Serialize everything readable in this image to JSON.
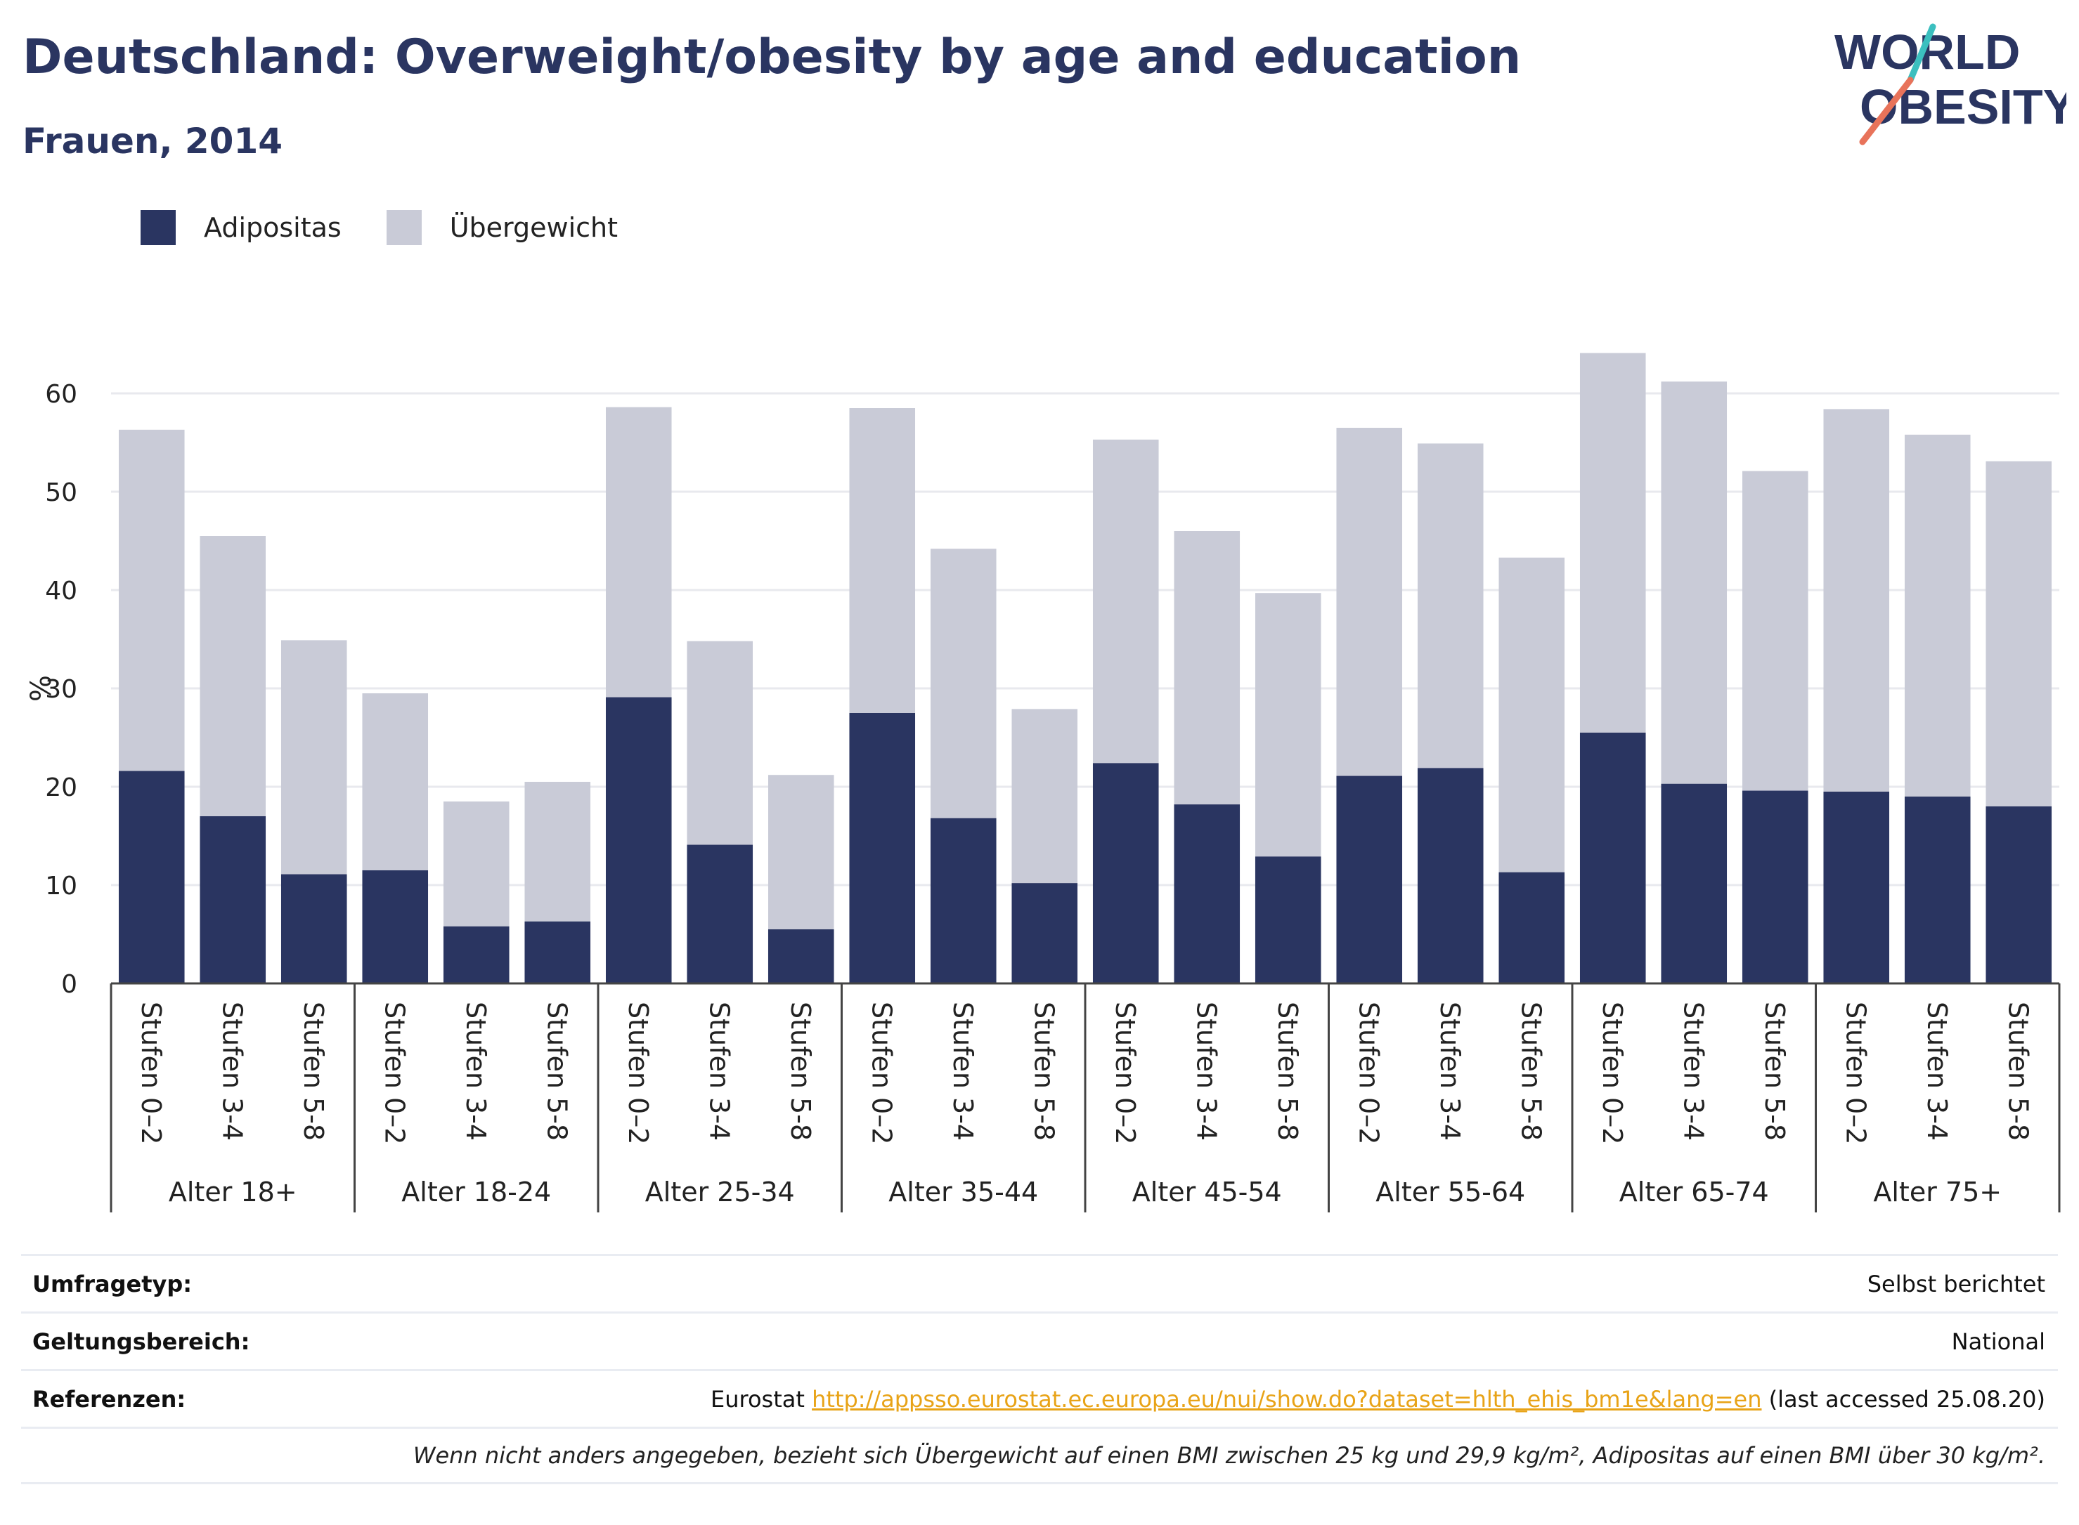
{
  "header": {
    "title": "Deutschland: Overweight/obesity by age and education",
    "subtitle": "Frauen, 2014"
  },
  "logo": {
    "line1": "WORLD",
    "line2": "OBESITY",
    "accent_teal": "#3bbfbf",
    "accent_coral": "#e8735a"
  },
  "legend": [
    {
      "label": "Adipositas",
      "color": "#2a3561"
    },
    {
      "label": "Übergewicht",
      "color": "#c9cbd7"
    }
  ],
  "chart_data": {
    "type": "bar",
    "stacked": "overlay",
    "ylabel": "%",
    "ylim": [
      0,
      65
    ],
    "yticks": [
      0,
      10,
      20,
      30,
      40,
      50,
      60
    ],
    "grid": true,
    "legend_position": "top-left",
    "groups": [
      {
        "label": "Alter 18+",
        "bars": [
          {
            "label": "Stufen 0–2",
            "adipositas": 21.6,
            "uebergewicht": 56.3
          },
          {
            "label": "Stufen 3-4",
            "adipositas": 17.0,
            "uebergewicht": 45.5
          },
          {
            "label": "Stufen 5-8",
            "adipositas": 11.1,
            "uebergewicht": 34.9
          }
        ]
      },
      {
        "label": "Alter 18-24",
        "bars": [
          {
            "label": "Stufen 0–2",
            "adipositas": 11.5,
            "uebergewicht": 29.5
          },
          {
            "label": "Stufen 3-4",
            "adipositas": 5.8,
            "uebergewicht": 18.5
          },
          {
            "label": "Stufen 5-8",
            "adipositas": 6.3,
            "uebergewicht": 20.5
          }
        ]
      },
      {
        "label": "Alter 25-34",
        "bars": [
          {
            "label": "Stufen 0–2",
            "adipositas": 29.1,
            "uebergewicht": 58.6
          },
          {
            "label": "Stufen 3-4",
            "adipositas": 14.1,
            "uebergewicht": 34.8
          },
          {
            "label": "Stufen 5-8",
            "adipositas": 5.5,
            "uebergewicht": 21.2
          }
        ]
      },
      {
        "label": "Alter 35-44",
        "bars": [
          {
            "label": "Stufen 0–2",
            "adipositas": 27.5,
            "uebergewicht": 58.5
          },
          {
            "label": "Stufen 3-4",
            "adipositas": 16.8,
            "uebergewicht": 44.2
          },
          {
            "label": "Stufen 5-8",
            "adipositas": 10.2,
            "uebergewicht": 27.9
          }
        ]
      },
      {
        "label": "Alter 45-54",
        "bars": [
          {
            "label": "Stufen 0–2",
            "adipositas": 22.4,
            "uebergewicht": 55.3
          },
          {
            "label": "Stufen 3-4",
            "adipositas": 18.2,
            "uebergewicht": 46.0
          },
          {
            "label": "Stufen 5-8",
            "adipositas": 12.9,
            "uebergewicht": 39.7
          }
        ]
      },
      {
        "label": "Alter 55-64",
        "bars": [
          {
            "label": "Stufen 0–2",
            "adipositas": 21.1,
            "uebergewicht": 56.5
          },
          {
            "label": "Stufen 3-4",
            "adipositas": 21.9,
            "uebergewicht": 54.9
          },
          {
            "label": "Stufen 5-8",
            "adipositas": 11.3,
            "uebergewicht": 43.3
          }
        ]
      },
      {
        "label": "Alter 65-74",
        "bars": [
          {
            "label": "Stufen 0–2",
            "adipositas": 25.5,
            "uebergewicht": 64.1
          },
          {
            "label": "Stufen 3-4",
            "adipositas": 20.3,
            "uebergewicht": 61.2
          },
          {
            "label": "Stufen 5-8",
            "adipositas": 19.6,
            "uebergewicht": 52.1
          }
        ]
      },
      {
        "label": "Alter 75+",
        "bars": [
          {
            "label": "Stufen 0–2",
            "adipositas": 19.5,
            "uebergewicht": 58.4
          },
          {
            "label": "Stufen 3-4",
            "adipositas": 19.0,
            "uebergewicht": 55.8
          },
          {
            "label": "Stufen 5-8",
            "adipositas": 18.0,
            "uebergewicht": 53.1
          }
        ]
      }
    ]
  },
  "meta": {
    "survey_label": "Umfragetyp:",
    "survey_value": "Selbst berichtet",
    "scope_label": "Geltungsbereich:",
    "scope_value": "National",
    "refs_label": "Referenzen:",
    "refs_source": "Eurostat",
    "refs_url": "http://appsso.eurostat.ec.europa.eu/nui/show.do?dataset=hlth_ehis_bm1e&lang=en",
    "refs_accessed": "(last accessed 25.08.20)",
    "note": "Wenn nicht anders angegeben, bezieht sich Übergewicht auf einen BMI zwischen 25 kg und 29,9 kg/m², Adipositas auf einen BMI über 30 kg/m²."
  }
}
